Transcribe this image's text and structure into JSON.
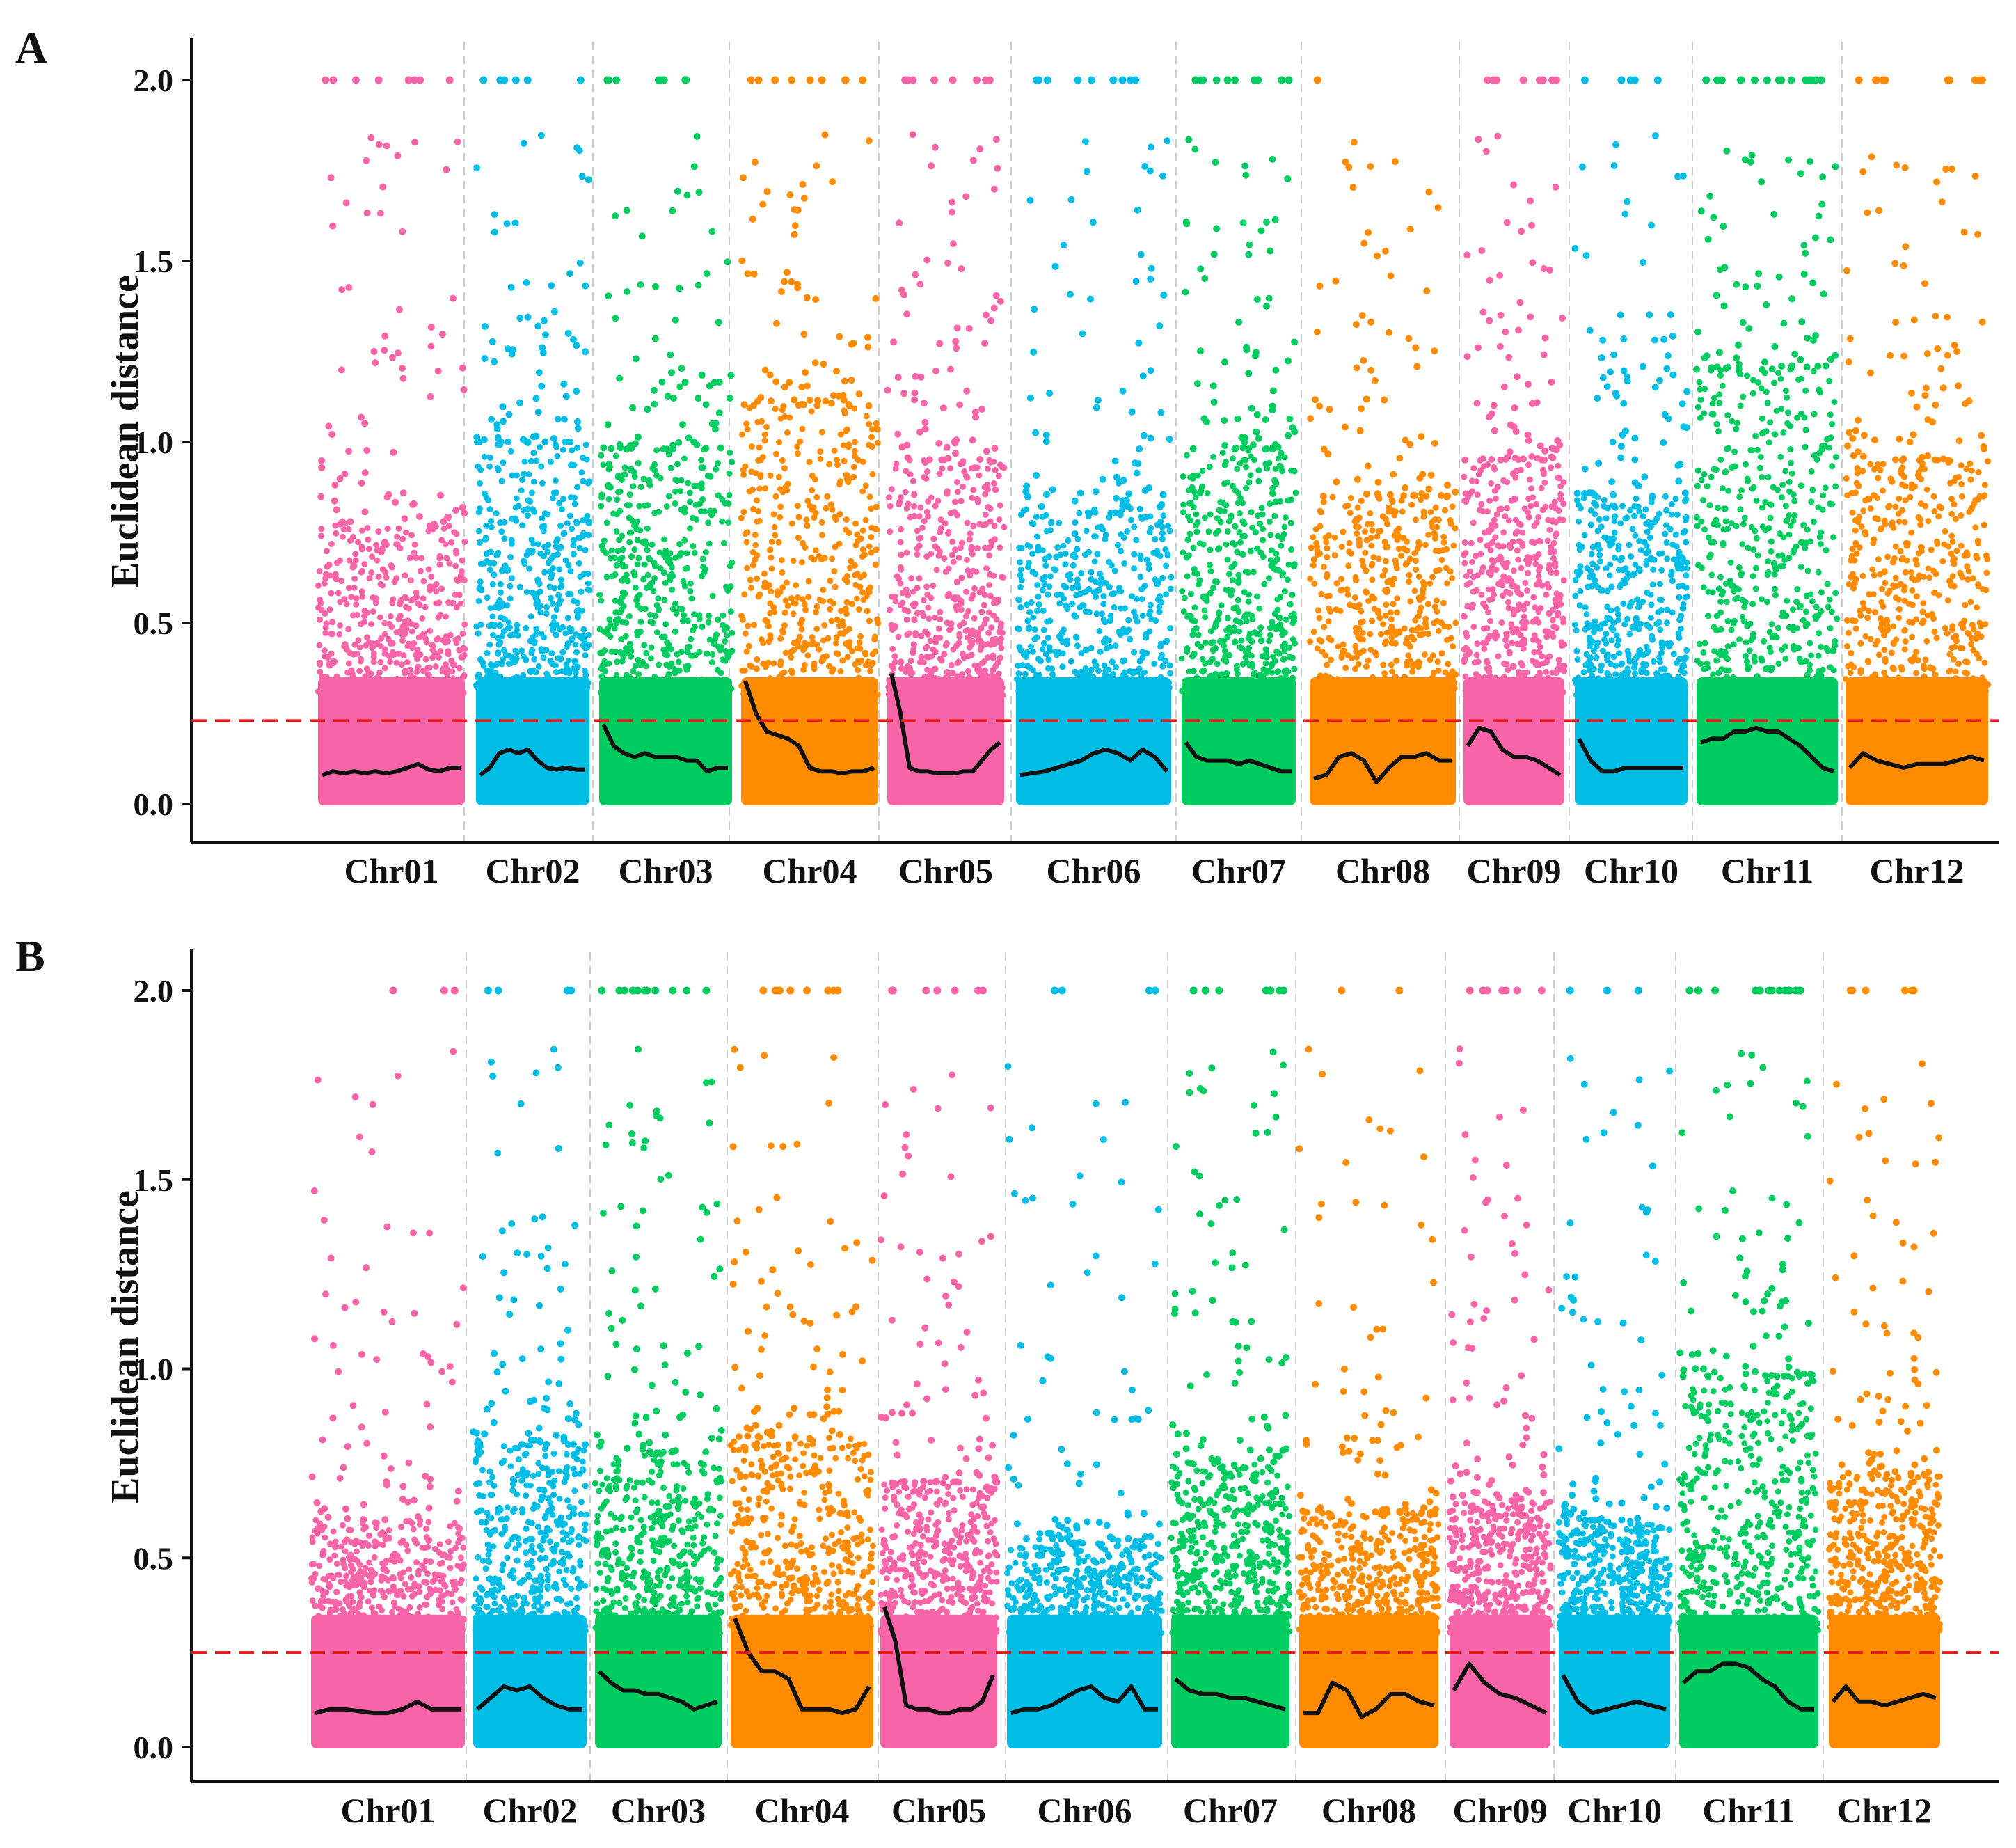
{
  "figure": {
    "colors": {
      "pink": "#f765a8",
      "blue": "#00bde6",
      "green": "#00cc60",
      "orange": "#ff8c00",
      "threshold": "#e8191a",
      "smooth": "#111111",
      "axis": "#111111",
      "separator": "#cccccc"
    }
  },
  "chart_data": [
    {
      "panel_label": "A",
      "type": "scatter",
      "ylabel": "Euclidean distance",
      "xlabel": "",
      "ylim": [
        0,
        2.0
      ],
      "yticks": [
        "0.0",
        "0.5",
        "1.0",
        "1.5",
        "2.0"
      ],
      "threshold": 0.23,
      "chromosomes": [
        {
          "name": "Chr01",
          "color": "pink",
          "density_top": 0.78,
          "cap_count": 8,
          "smooth": [
            0.08,
            0.09,
            0.085,
            0.09,
            0.085,
            0.09,
            0.085,
            0.09,
            0.1,
            0.11,
            0.095,
            0.09,
            0.1,
            0.1
          ]
        },
        {
          "name": "Chr02",
          "color": "blue",
          "density_top": 1.0,
          "cap_count": 6,
          "smooth": [
            0.08,
            0.1,
            0.14,
            0.15,
            0.14,
            0.15,
            0.12,
            0.1,
            0.095,
            0.1,
            0.095,
            0.095
          ]
        },
        {
          "name": "Chr03",
          "color": "green",
          "density_top": 0.98,
          "cap_count": 10,
          "smooth": [
            0.22,
            0.16,
            0.14,
            0.13,
            0.14,
            0.13,
            0.13,
            0.13,
            0.12,
            0.12,
            0.09,
            0.1,
            0.1
          ]
        },
        {
          "name": "Chr04",
          "color": "orange",
          "density_top": 1.1,
          "cap_count": 9,
          "smooth": [
            0.34,
            0.25,
            0.2,
            0.19,
            0.18,
            0.16,
            0.1,
            0.09,
            0.09,
            0.085,
            0.09,
            0.09,
            0.1
          ]
        },
        {
          "name": "Chr05",
          "color": "pink",
          "density_top": 0.95,
          "cap_count": 8,
          "smooth": [
            0.36,
            0.25,
            0.1,
            0.09,
            0.09,
            0.085,
            0.085,
            0.085,
            0.09,
            0.09,
            0.12,
            0.15,
            0.17
          ]
        },
        {
          "name": "Chr06",
          "color": "blue",
          "density_top": 0.82,
          "cap_count": 9,
          "smooth": [
            0.08,
            0.085,
            0.09,
            0.1,
            0.11,
            0.12,
            0.14,
            0.15,
            0.14,
            0.12,
            0.15,
            0.13,
            0.09
          ]
        },
        {
          "name": "Chr07",
          "color": "green",
          "density_top": 0.98,
          "cap_count": 12,
          "smooth": [
            0.17,
            0.13,
            0.12,
            0.12,
            0.12,
            0.11,
            0.12,
            0.11,
            0.1,
            0.09,
            0.09
          ]
        },
        {
          "name": "Chr08",
          "color": "orange",
          "density_top": 0.85,
          "cap_count": 1,
          "smooth": [
            0.07,
            0.08,
            0.13,
            0.14,
            0.12,
            0.06,
            0.1,
            0.13,
            0.13,
            0.14,
            0.12,
            0.12
          ]
        },
        {
          "name": "Chr09",
          "color": "pink",
          "density_top": 0.95,
          "cap_count": 8,
          "smooth": [
            0.16,
            0.21,
            0.2,
            0.15,
            0.13,
            0.13,
            0.12,
            0.1,
            0.08
          ]
        },
        {
          "name": "Chr10",
          "color": "blue",
          "density_top": 0.85,
          "cap_count": 5,
          "smooth": [
            0.18,
            0.12,
            0.09,
            0.09,
            0.1,
            0.1,
            0.1,
            0.1,
            0.1,
            0.1
          ]
        },
        {
          "name": "Chr11",
          "color": "green",
          "density_top": 1.2,
          "cap_count": 16,
          "smooth": [
            0.17,
            0.18,
            0.18,
            0.2,
            0.2,
            0.21,
            0.2,
            0.2,
            0.18,
            0.16,
            0.13,
            0.1,
            0.09
          ]
        },
        {
          "name": "Chr12",
          "color": "orange",
          "density_top": 0.95,
          "cap_count": 10,
          "smooth": [
            0.1,
            0.14,
            0.12,
            0.11,
            0.1,
            0.11,
            0.11,
            0.11,
            0.12,
            0.13,
            0.12
          ]
        }
      ]
    },
    {
      "panel_label": "B",
      "type": "scatter",
      "ylabel": "Euclidean distance",
      "xlabel": "",
      "ylim": [
        0,
        2.0
      ],
      "yticks": [
        "0.0",
        "0.5",
        "1.0",
        "1.5",
        "2.0"
      ],
      "threshold": 0.25,
      "chromosomes": [
        {
          "name": "Chr01",
          "color": "pink",
          "density_top": 0.6,
          "cap_count": 3,
          "smooth": [
            0.09,
            0.1,
            0.1,
            0.095,
            0.09,
            0.09,
            0.1,
            0.12,
            0.1,
            0.1,
            0.1
          ]
        },
        {
          "name": "Chr02",
          "color": "blue",
          "density_top": 0.8,
          "cap_count": 4,
          "smooth": [
            0.1,
            0.13,
            0.16,
            0.15,
            0.16,
            0.13,
            0.11,
            0.1,
            0.1
          ]
        },
        {
          "name": "Chr03",
          "color": "green",
          "density_top": 0.78,
          "cap_count": 12,
          "smooth": [
            0.2,
            0.17,
            0.15,
            0.15,
            0.14,
            0.14,
            0.13,
            0.12,
            0.1,
            0.11,
            0.12
          ]
        },
        {
          "name": "Chr04",
          "color": "orange",
          "density_top": 0.82,
          "cap_count": 9,
          "smooth": [
            0.34,
            0.25,
            0.2,
            0.2,
            0.18,
            0.1,
            0.1,
            0.1,
            0.09,
            0.1,
            0.16
          ]
        },
        {
          "name": "Chr05",
          "color": "pink",
          "density_top": 0.7,
          "cap_count": 8,
          "smooth": [
            0.37,
            0.28,
            0.11,
            0.1,
            0.1,
            0.09,
            0.09,
            0.1,
            0.1,
            0.12,
            0.19
          ]
        },
        {
          "name": "Chr06",
          "color": "blue",
          "density_top": 0.55,
          "cap_count": 4,
          "smooth": [
            0.09,
            0.1,
            0.1,
            0.11,
            0.13,
            0.15,
            0.16,
            0.13,
            0.12,
            0.16,
            0.1,
            0.1
          ]
        },
        {
          "name": "Chr07",
          "color": "green",
          "density_top": 0.75,
          "cap_count": 9,
          "smooth": [
            0.18,
            0.15,
            0.14,
            0.14,
            0.13,
            0.13,
            0.12,
            0.11,
            0.1
          ]
        },
        {
          "name": "Chr08",
          "color": "orange",
          "density_top": 0.62,
          "cap_count": 2,
          "smooth": [
            0.09,
            0.09,
            0.17,
            0.15,
            0.08,
            0.1,
            0.14,
            0.14,
            0.12,
            0.11
          ]
        },
        {
          "name": "Chr09",
          "color": "pink",
          "density_top": 0.65,
          "cap_count": 9,
          "smooth": [
            0.15,
            0.22,
            0.17,
            0.14,
            0.13,
            0.11,
            0.09
          ]
        },
        {
          "name": "Chr10",
          "color": "blue",
          "density_top": 0.6,
          "cap_count": 3,
          "smooth": [
            0.19,
            0.12,
            0.09,
            0.1,
            0.11,
            0.12,
            0.11,
            0.1
          ]
        },
        {
          "name": "Chr11",
          "color": "green",
          "density_top": 0.98,
          "cap_count": 17,
          "smooth": [
            0.17,
            0.2,
            0.2,
            0.22,
            0.22,
            0.21,
            0.18,
            0.16,
            0.12,
            0.1,
            0.1
          ]
        },
        {
          "name": "Chr12",
          "color": "orange",
          "density_top": 0.72,
          "cap_count": 7,
          "smooth": [
            0.12,
            0.16,
            0.12,
            0.12,
            0.11,
            0.12,
            0.13,
            0.14,
            0.13
          ]
        }
      ]
    }
  ]
}
